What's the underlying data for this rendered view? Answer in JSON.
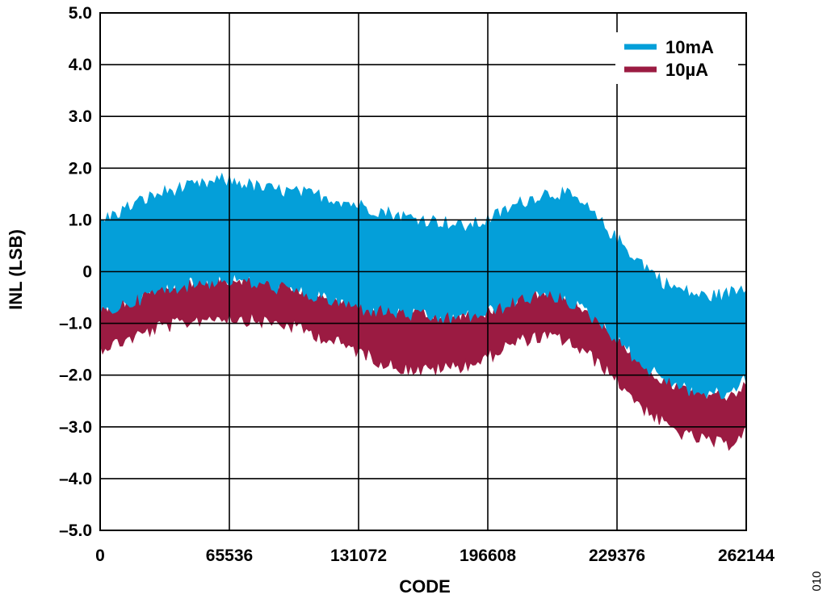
{
  "figure_id": "010",
  "chart_data": {
    "type": "area",
    "title": "",
    "xlabel": "CODE",
    "ylabel": "INL (LSB)",
    "xlim": [
      0,
      262144
    ],
    "ylim": [
      -5.0,
      5.0
    ],
    "x_ticks": [
      0,
      65536,
      131072,
      196608,
      229376,
      262144
    ],
    "x_tick_labels": [
      "0",
      "65536",
      "131072",
      "196608",
      "229376",
      "262144"
    ],
    "y_ticks": [
      5.0,
      4.0,
      3.0,
      2.0,
      1.0,
      0,
      -1.0,
      -2.0,
      -3.0,
      -4.0,
      -5.0
    ],
    "y_tick_labels": [
      "5.0",
      "4.0",
      "3.0",
      "2.0",
      "1.0",
      "0",
      "–1.0",
      "–2.0",
      "–3.0",
      "–4.0",
      "–5.0"
    ],
    "grid": true,
    "legend_position": "top-right",
    "series": [
      {
        "name": "10µA",
        "color": "#9b1b42",
        "x": [
          0,
          8192,
          16384,
          24576,
          32768,
          40960,
          49152,
          57344,
          65536,
          73728,
          81920,
          90112,
          98304,
          106496,
          114688,
          122880,
          131072,
          139264,
          147456,
          155648,
          163840,
          172032,
          180224,
          188416,
          196608,
          204800,
          212992,
          221184,
          229376,
          237568,
          245760,
          253952,
          262144
        ],
        "upper": [
          -0.8,
          -0.7,
          -0.55,
          -0.4,
          -0.3,
          -0.2,
          -0.2,
          -0.2,
          -0.25,
          -0.3,
          -0.4,
          -0.5,
          -0.6,
          -0.7,
          -0.75,
          -0.8,
          -0.85,
          -0.9,
          -0.9,
          -0.85,
          -0.7,
          -0.5,
          -0.45,
          -0.5,
          -0.75,
          -1.1,
          -1.5,
          -1.9,
          -2.2,
          -2.35,
          -2.4,
          -2.45,
          -2.3
        ],
        "lower": [
          -1.4,
          -1.3,
          -1.15,
          -1.0,
          -0.95,
          -0.85,
          -0.8,
          -0.85,
          -0.9,
          -0.95,
          -1.05,
          -1.2,
          -1.35,
          -1.5,
          -1.7,
          -1.8,
          -1.85,
          -1.8,
          -1.75,
          -1.65,
          -1.4,
          -1.25,
          -1.2,
          -1.25,
          -1.5,
          -1.8,
          -2.2,
          -2.6,
          -2.9,
          -3.1,
          -3.2,
          -3.3,
          -3.0
        ]
      },
      {
        "name": "10mA",
        "color": "#049fd9",
        "x": [
          0,
          8192,
          16384,
          24576,
          32768,
          40960,
          49152,
          57344,
          65536,
          73728,
          81920,
          90112,
          98304,
          106496,
          114688,
          122880,
          131072,
          139264,
          147456,
          155648,
          163840,
          172032,
          180224,
          188416,
          196608,
          204800,
          212992,
          221184,
          229376,
          237568,
          245760,
          253952,
          262144
        ],
        "upper": [
          0.9,
          1.1,
          1.3,
          1.45,
          1.55,
          1.6,
          1.7,
          1.65,
          1.55,
          1.5,
          1.45,
          1.4,
          1.3,
          1.2,
          1.1,
          1.0,
          0.95,
          0.9,
          0.8,
          0.9,
          1.1,
          1.3,
          1.45,
          1.45,
          1.2,
          0.8,
          0.4,
          0.05,
          -0.3,
          -0.45,
          -0.55,
          -0.5,
          -0.35
        ],
        "lower": [
          -0.75,
          -0.6,
          -0.45,
          -0.3,
          -0.2,
          -0.15,
          -0.1,
          -0.1,
          -0.2,
          -0.25,
          -0.35,
          -0.45,
          -0.55,
          -0.65,
          -0.7,
          -0.75,
          -0.8,
          -0.85,
          -0.8,
          -0.75,
          -0.6,
          -0.45,
          -0.4,
          -0.45,
          -0.7,
          -1.0,
          -1.4,
          -1.8,
          -2.0,
          -2.2,
          -2.3,
          -2.3,
          -2.0
        ]
      }
    ],
    "legend_order": [
      "10mA",
      "10µA"
    ]
  }
}
